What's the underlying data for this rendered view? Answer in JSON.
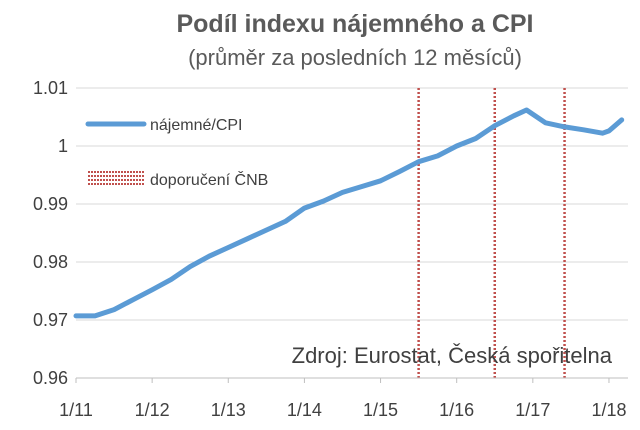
{
  "chart_data": {
    "type": "line",
    "title": "Podíl indexu nájemného a CPI",
    "subtitle": "(průměr za posledních 12 měsíců)",
    "source": "Zdroj: Eurostat, Česká spořitelna",
    "ylim": [
      0.96,
      1.01
    ],
    "yticks": [
      0.96,
      0.97,
      0.98,
      0.99,
      1,
      1.01
    ],
    "ytick_labels": [
      "0.96",
      "0.97",
      "0.98",
      "0.99",
      "1",
      "1.01"
    ],
    "xlim": [
      "2011-01",
      "2018-04"
    ],
    "xticks": [
      "2011-01",
      "2012-01",
      "2013-01",
      "2014-01",
      "2015-01",
      "2016-01",
      "2017-01",
      "2018-01"
    ],
    "xtick_labels": [
      "1/11",
      "1/12",
      "1/13",
      "1/14",
      "1/15",
      "1/16",
      "1/17",
      "1/18"
    ],
    "grid": "horizontal",
    "legend_position": "top-left",
    "series": [
      {
        "name": "nájemné/CPI",
        "color": "#5b9bd5",
        "x": [
          "2011-01",
          "2011-04",
          "2011-07",
          "2011-10",
          "2012-01",
          "2012-04",
          "2012-07",
          "2012-10",
          "2013-01",
          "2013-04",
          "2013-07",
          "2013-10",
          "2014-01",
          "2014-04",
          "2014-07",
          "2014-10",
          "2015-01",
          "2015-04",
          "2015-07",
          "2015-10",
          "2016-01",
          "2016-04",
          "2016-07",
          "2016-10",
          "2016-12",
          "2017-03",
          "2017-06",
          "2017-09",
          "2017-12",
          "2018-01",
          "2018-03"
        ],
        "values": [
          0.9707,
          0.9707,
          0.9718,
          0.9735,
          0.9752,
          0.977,
          0.9792,
          0.981,
          0.9825,
          0.984,
          0.9855,
          0.987,
          0.9893,
          0.9905,
          0.992,
          0.993,
          0.994,
          0.9956,
          0.9973,
          0.9983,
          1.0,
          1.0013,
          1.0035,
          1.0052,
          1.0062,
          1.004,
          1.0033,
          1.0028,
          1.0022,
          1.0026,
          1.0045
        ]
      }
    ],
    "markers": {
      "name": "doporučení ČNB",
      "color": "#c0504d",
      "dates": [
        "2015-07",
        "2016-07",
        "2017-06"
      ]
    }
  }
}
